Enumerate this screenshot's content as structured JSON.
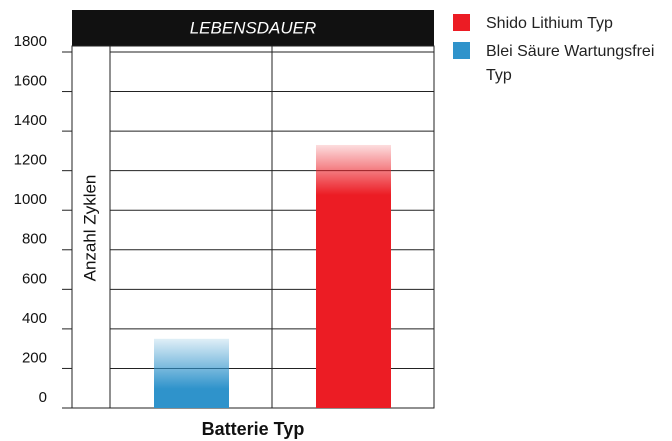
{
  "chart_data": {
    "type": "bar",
    "title": "LEBENSDAUER",
    "x_label": "Batterie Typ",
    "y_label": "Anzahl Zyklen",
    "categories": [
      null,
      null
    ],
    "series": [
      {
        "name": "Shido Lithium Typ",
        "color": "#ec1c24",
        "values": [
          null,
          1330
        ]
      },
      {
        "name": "Blei Säure Wartungsfrei Typ",
        "color": "#2f93cb",
        "values": [
          350,
          null
        ]
      }
    ],
    "ylim": [
      0,
      1800
    ],
    "yticks": [
      0,
      200,
      400,
      600,
      800,
      1000,
      1200,
      1400,
      1600,
      1800
    ],
    "grid": true,
    "legend": "right"
  }
}
